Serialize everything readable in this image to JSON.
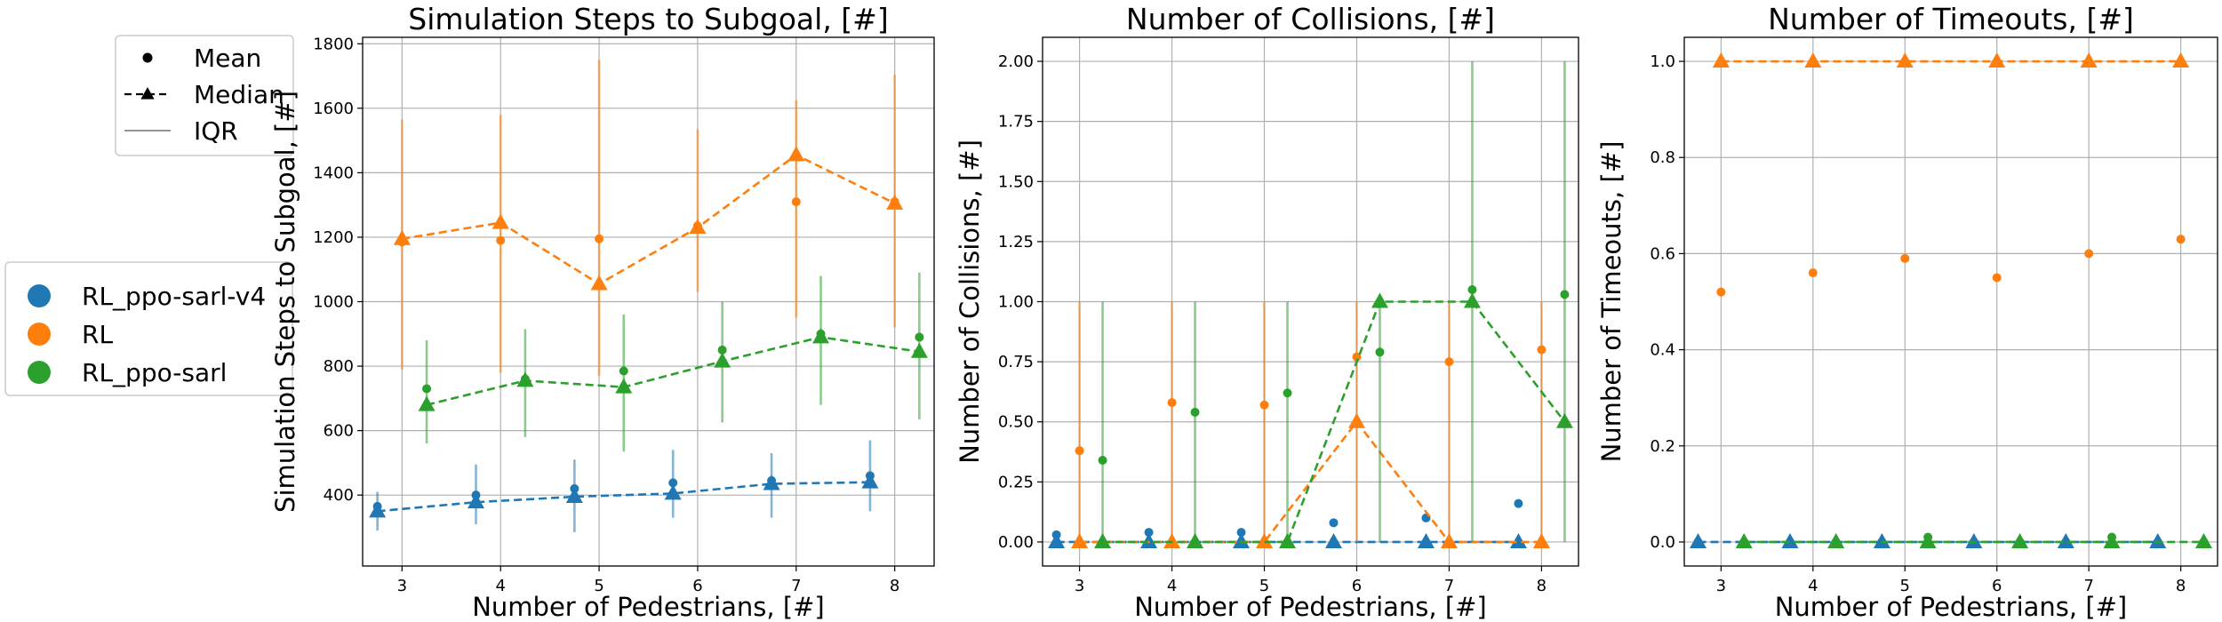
{
  "chart_data": {
    "colors": {
      "RL_ppo-sarl-v4": "#1f77b4",
      "RL": "#ff7f0e",
      "RL_ppo-sarl": "#2ca02c"
    },
    "legend_markers": [
      {
        "label": "Mean",
        "kind": "mean"
      },
      {
        "label": "Median",
        "kind": "median"
      },
      {
        "label": "IQR",
        "kind": "iqr"
      }
    ],
    "legend_series": [
      "RL_ppo-sarl-v4",
      "RL",
      "RL_ppo-sarl"
    ],
    "series_offsets": {
      "RL_ppo-sarl-v4": -0.25,
      "RL": 0,
      "RL_ppo-sarl": 0.25
    },
    "plots": [
      {
        "type": "line",
        "title": "Simulation Steps to Subgoal, [#]",
        "xlabel": "Number of Pedestrians, [#]",
        "ylabel": "Simulation Steps to Subgoal, [#]",
        "xlim": [
          2.6,
          8.4
        ],
        "ylim": [
          180,
          1820
        ],
        "xticks": [
          3,
          4,
          5,
          6,
          7,
          8
        ],
        "yticks": [
          400,
          600,
          800,
          1000,
          1200,
          1400,
          1600,
          1800
        ],
        "ytick_labels": [
          "400",
          "600",
          "800",
          "1000",
          "1200",
          "1400",
          "1600",
          "1800"
        ],
        "grid": true,
        "x": [
          3,
          4,
          5,
          6,
          7,
          8
        ],
        "series": [
          {
            "name": "RL_ppo-sarl-v4",
            "mean": [
              365,
              400,
              420,
              438,
              445,
              460
            ],
            "median": [
              350,
              378,
              395,
              405,
              435,
              440
            ],
            "q1": [
              290,
              310,
              285,
              330,
              330,
              350
            ],
            "q3": [
              410,
              495,
              510,
              540,
              530,
              570
            ]
          },
          {
            "name": "RL",
            "mean": [
              1185,
              1190,
              1195,
              1235,
              1310,
              1310
            ],
            "median": [
              1195,
              1245,
              1055,
              1230,
              1455,
              1305
            ],
            "q1": [
              790,
              780,
              770,
              1030,
              950,
              920
            ],
            "q3": [
              1565,
              1580,
              1750,
              1535,
              1625,
              1705
            ]
          },
          {
            "name": "RL_ppo-sarl",
            "mean": [
              730,
              760,
              785,
              850,
              900,
              890
            ],
            "median": [
              680,
              755,
              735,
              815,
              890,
              845
            ],
            "q1": [
              560,
              580,
              535,
              625,
              680,
              635
            ],
            "q3": [
              880,
              915,
              960,
              1000,
              1080,
              1090
            ]
          }
        ]
      },
      {
        "type": "line",
        "title": "Number of Collisions, [#]",
        "xlabel": "Number of Pedestrians, [#]",
        "ylabel": "Number of Collisions, [#]",
        "xlim": [
          2.6,
          8.4
        ],
        "ylim": [
          -0.1,
          2.1
        ],
        "xticks": [
          3,
          4,
          5,
          6,
          7,
          8
        ],
        "yticks": [
          0,
          0.25,
          0.5,
          0.75,
          1,
          1.25,
          1.5,
          1.75,
          2
        ],
        "ytick_labels": [
          "0.00",
          "0.25",
          "0.50",
          "0.75",
          "1.00",
          "1.25",
          "1.50",
          "1.75",
          "2.00"
        ],
        "grid": true,
        "x": [
          3,
          4,
          5,
          6,
          7,
          8
        ],
        "series": [
          {
            "name": "RL_ppo-sarl-v4",
            "mean": [
              0.03,
              0.04,
              0.04,
              0.08,
              0.1,
              0.16
            ],
            "median": [
              0,
              0,
              0,
              0,
              0,
              0
            ],
            "q1": [
              0,
              0,
              0,
              0,
              0,
              0
            ],
            "q3": [
              0,
              0,
              0,
              0,
              0,
              0
            ]
          },
          {
            "name": "RL",
            "mean": [
              0.38,
              0.58,
              0.57,
              0.77,
              0.75,
              0.8
            ],
            "median": [
              0,
              0,
              0,
              0.5,
              0,
              0
            ],
            "q1": [
              0,
              0,
              0,
              0,
              0,
              0
            ],
            "q3": [
              1,
              1,
              1,
              1,
              1,
              1
            ]
          },
          {
            "name": "RL_ppo-sarl",
            "mean": [
              0.34,
              0.54,
              0.62,
              0.79,
              1.05,
              1.03
            ],
            "median": [
              0,
              0,
              0,
              1,
              1,
              0.5
            ],
            "q1": [
              0,
              0,
              0,
              0,
              0,
              0
            ],
            "q3": [
              1,
              1,
              1,
              1,
              2,
              2
            ]
          }
        ]
      },
      {
        "type": "line",
        "title": "Number of Timeouts, [#]",
        "xlabel": "Number of Pedestrians, [#]",
        "ylabel": "Number of Timeouts, [#]",
        "xlim": [
          2.6,
          8.4
        ],
        "ylim": [
          -0.05,
          1.05
        ],
        "xticks": [
          3,
          4,
          5,
          6,
          7,
          8
        ],
        "yticks": [
          0,
          0.2,
          0.4,
          0.6,
          0.8,
          1
        ],
        "ytick_labels": [
          "0.0",
          "0.2",
          "0.4",
          "0.6",
          "0.8",
          "1.0"
        ],
        "grid": true,
        "x": [
          3,
          4,
          5,
          6,
          7,
          8
        ],
        "series": [
          {
            "name": "RL_ppo-sarl-v4",
            "mean": [
              0,
              0,
              0,
              0,
              0,
              0
            ],
            "median": [
              0,
              0,
              0,
              0,
              0,
              0
            ],
            "q1": [
              0,
              0,
              0,
              0,
              0,
              0
            ],
            "q3": [
              0,
              0,
              0,
              0,
              0,
              0
            ]
          },
          {
            "name": "RL",
            "mean": [
              0.52,
              0.56,
              0.59,
              0.55,
              0.6,
              0.63
            ],
            "median": [
              1,
              1,
              1,
              1,
              1,
              1
            ],
            "q1": [
              1,
              1,
              1,
              1,
              1,
              1
            ],
            "q3": [
              1,
              1,
              1,
              1,
              1,
              1
            ]
          },
          {
            "name": "RL_ppo-sarl",
            "mean": [
              0,
              0,
              0.01,
              0,
              0.01,
              0
            ],
            "median": [
              0,
              0,
              0,
              0,
              0,
              0
            ],
            "q1": [
              0,
              0,
              0,
              0,
              0,
              0
            ],
            "q3": [
              0,
              0,
              0,
              0,
              0,
              0
            ]
          }
        ]
      }
    ]
  }
}
